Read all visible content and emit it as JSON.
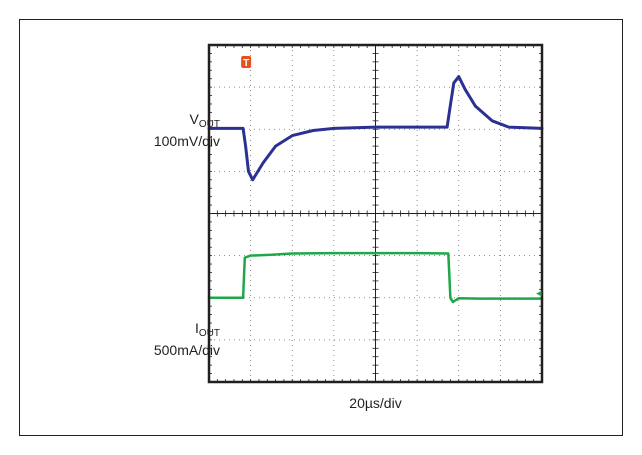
{
  "chart_data": {
    "type": "line",
    "grid": true,
    "divisions": {
      "x": 8,
      "y": 8
    },
    "x_scale_label": "20µs/div",
    "trigger_marker": "T",
    "channels": [
      {
        "label_main": "V",
        "label_sub": "OUT",
        "scale_label": "100mV/div",
        "color": "#2b3192",
        "x_div": [
          0,
          0.82,
          0.88,
          0.95,
          1.05,
          1.3,
          1.6,
          2.0,
          2.5,
          3.0,
          4.0,
          5.0,
          5.72,
          5.78,
          5.88,
          6.0,
          6.15,
          6.4,
          6.8,
          7.2,
          8.0
        ],
        "y_div": [
          6.02,
          6.02,
          5.6,
          5.0,
          4.8,
          5.2,
          5.6,
          5.85,
          5.97,
          6.02,
          6.05,
          6.05,
          6.05,
          6.45,
          7.1,
          7.25,
          6.95,
          6.55,
          6.2,
          6.05,
          6.02
        ]
      },
      {
        "label_main": "I",
        "label_sub": "OUT",
        "scale_label": "500mA/div",
        "color": "#1ea84a",
        "x_div": [
          0,
          0.82,
          0.86,
          1.0,
          1.5,
          2.0,
          3.0,
          4.0,
          5.0,
          5.75,
          5.8,
          5.86,
          6.0,
          6.5,
          7.0,
          8.0
        ],
        "y_div": [
          2.0,
          2.0,
          2.95,
          3.0,
          3.02,
          3.05,
          3.06,
          3.06,
          3.06,
          3.05,
          2.0,
          1.9,
          1.99,
          1.98,
          1.98,
          1.98
        ],
        "ground_marker": "◂"
      }
    ]
  }
}
